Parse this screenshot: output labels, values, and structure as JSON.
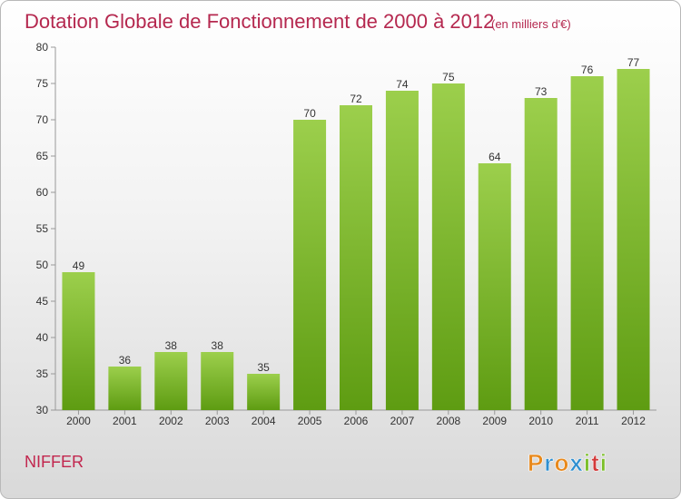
{
  "chart_data": {
    "type": "bar",
    "title": "Dotation Globale de Fonctionnement de 2000 à 2012",
    "subtitle": "(en milliers d'€)",
    "categories": [
      "2000",
      "2001",
      "2002",
      "2003",
      "2004",
      "2005",
      "2006",
      "2007",
      "2008",
      "2009",
      "2010",
      "2011",
      "2012"
    ],
    "values": [
      49,
      36,
      38,
      38,
      35,
      70,
      72,
      74,
      75,
      64,
      73,
      76,
      77
    ],
    "ylim": [
      30,
      80
    ],
    "yticks": [
      30,
      35,
      40,
      45,
      50,
      55,
      60,
      65,
      70,
      75,
      80
    ],
    "grid": false,
    "bar_color_top": "#9ccf4c",
    "bar_color_bottom": "#5e9c12"
  },
  "place_name": "NIFFER",
  "logo": {
    "letters": [
      "P",
      "r",
      "o",
      "x",
      "i",
      "t",
      "i"
    ],
    "colors": [
      "#e8891c",
      "#2f8fd0",
      "#e8891c",
      "#2f8fd0",
      "#7cbf2a",
      "#d23a3a",
      "#7cbf2a"
    ]
  }
}
